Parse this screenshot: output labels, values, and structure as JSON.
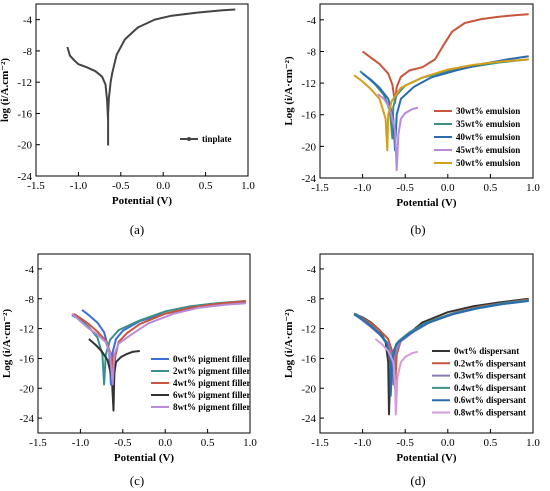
{
  "figure": {
    "panels": [
      {
        "caption": "(a)"
      },
      {
        "caption": "(b)"
      },
      {
        "caption": "(c)"
      },
      {
        "caption": "(d)"
      }
    ]
  },
  "chart_data": [
    {
      "type": "line",
      "panel": "(a)",
      "xlabel": "Potential (V)",
      "ylabel": "log (i/A.cm⁻²)",
      "xlim": [
        -1.5,
        1.0
      ],
      "ylim": [
        -24,
        -2
      ],
      "xticks": [
        "-1.5",
        "-1.0",
        "-0.5",
        "0.0",
        "0.5",
        "1.0"
      ],
      "yticks": [
        "-4",
        "-8",
        "-12",
        "-16",
        "-20",
        "-24"
      ],
      "legend_position": "lower-right",
      "series": [
        {
          "name": "tinplate",
          "color": "#444444",
          "marker": true,
          "x": [
            -1.13,
            -1.1,
            -1.05,
            -1.0,
            -0.9,
            -0.8,
            -0.72,
            -0.68,
            -0.66,
            -0.65,
            -0.65,
            -0.65,
            -0.64,
            -0.63,
            -0.62,
            -0.6,
            -0.55,
            -0.45,
            -0.3,
            -0.1,
            0.1,
            0.4,
            0.7,
            0.85
          ],
          "y": [
            -7.5,
            -8.6,
            -9.2,
            -9.7,
            -10.1,
            -10.6,
            -11.3,
            -12.3,
            -14.5,
            -17.0,
            -20.0,
            -16.0,
            -14.0,
            -13.0,
            -12.0,
            -10.8,
            -8.5,
            -6.5,
            -5.0,
            -4.0,
            -3.5,
            -3.1,
            -2.8,
            -2.7
          ]
        }
      ]
    },
    {
      "type": "line",
      "panel": "(b)",
      "xlabel": "Potential (V)",
      "ylabel": "Log (i/A·cm⁻²)",
      "xlim": [
        -1.5,
        1.0
      ],
      "ylim": [
        -24,
        -2
      ],
      "xticks": [
        "-1.5",
        "-1.0",
        "-0.5",
        "0.0",
        "0.5",
        "1.0"
      ],
      "yticks": [
        "-4",
        "-8",
        "-12",
        "-16",
        "-20",
        "-24"
      ],
      "legend_position": "lower-right",
      "series": [
        {
          "name": "30wt% emulsion",
          "color": "#c8553d",
          "x": [
            -1.0,
            -0.9,
            -0.8,
            -0.7,
            -0.65,
            -0.62,
            -0.6,
            -0.55,
            -0.45,
            -0.3,
            -0.15,
            -0.05,
            0.05,
            0.2,
            0.4,
            0.6,
            0.8,
            0.95
          ],
          "y": [
            -8.0,
            -8.8,
            -9.6,
            -10.8,
            -12.2,
            -14.5,
            -12.5,
            -11.2,
            -10.4,
            -10.0,
            -9.0,
            -7.2,
            -5.5,
            -4.4,
            -3.9,
            -3.6,
            -3.4,
            -3.3
          ]
        },
        {
          "name": "35wt% emulsion",
          "color": "#3b8f8a",
          "x": [
            -1.03,
            -0.95,
            -0.85,
            -0.75,
            -0.68,
            -0.65,
            -0.64,
            -0.6,
            -0.5,
            -0.3,
            0.0,
            0.3,
            0.6,
            0.95
          ],
          "y": [
            -10.5,
            -11.2,
            -12.2,
            -13.5,
            -15.5,
            -19.0,
            -15.0,
            -13.5,
            -12.3,
            -11.3,
            -10.5,
            -9.9,
            -9.4,
            -9.0
          ]
        },
        {
          "name": "40wt% emulsion",
          "color": "#2b6cb0",
          "x": [
            -1.0,
            -0.9,
            -0.8,
            -0.7,
            -0.64,
            -0.62,
            -0.6,
            -0.55,
            -0.4,
            -0.2,
            0.1,
            0.4,
            0.7,
            0.95
          ],
          "y": [
            -10.8,
            -11.6,
            -12.6,
            -14.0,
            -16.5,
            -20.5,
            -16.0,
            -14.0,
            -12.5,
            -11.3,
            -10.4,
            -9.6,
            -9.0,
            -8.6
          ]
        },
        {
          "name": "45wt% emulsion",
          "color": "#b98ad9",
          "x": [
            -0.82,
            -0.75,
            -0.68,
            -0.62,
            -0.6,
            -0.58,
            -0.55,
            -0.5,
            -0.42,
            -0.35
          ],
          "y": [
            -13.4,
            -14.0,
            -15.2,
            -18.0,
            -23.0,
            -18.5,
            -16.5,
            -15.8,
            -15.3,
            -15.1
          ]
        },
        {
          "name": "50wt% emulsion",
          "color": "#d4a017",
          "x": [
            -1.1,
            -1.0,
            -0.9,
            -0.8,
            -0.73,
            -0.71,
            -0.7,
            -0.66,
            -0.55,
            -0.3,
            0.0,
            0.3,
            0.6,
            0.95
          ],
          "y": [
            -11.0,
            -11.8,
            -12.8,
            -14.0,
            -16.5,
            -20.5,
            -16.0,
            -14.3,
            -12.6,
            -11.3,
            -10.3,
            -9.7,
            -9.3,
            -9.0
          ]
        }
      ]
    },
    {
      "type": "line",
      "panel": "(c)",
      "xlabel": "Potential (V)",
      "ylabel": "Log (i/A·cm⁻²)",
      "xlim": [
        -1.5,
        1.0
      ],
      "ylim": [
        -26,
        -2
      ],
      "xticks": [
        "-1.5",
        "-1.0",
        "-0.5",
        "0.0",
        "0.5",
        "1.0"
      ],
      "yticks": [
        "-4",
        "-8",
        "-12",
        "-16",
        "-20",
        "-24"
      ],
      "legend_position": "lower-right",
      "series": [
        {
          "name": "0wt% pigment filler",
          "color": "#3b6fd6",
          "x": [
            -0.98,
            -0.9,
            -0.8,
            -0.72,
            -0.66,
            -0.64,
            -0.62,
            -0.58,
            -0.5,
            -0.3,
            0.0,
            0.3,
            0.6,
            0.95
          ],
          "y": [
            -9.5,
            -10.2,
            -11.2,
            -12.5,
            -15.0,
            -19.5,
            -15.2,
            -13.4,
            -12.3,
            -11.0,
            -10.0,
            -9.3,
            -8.8,
            -8.5
          ]
        },
        {
          "name": "2wt% pigment filler",
          "color": "#3b8f8a",
          "x": [
            -1.1,
            -1.0,
            -0.9,
            -0.8,
            -0.74,
            -0.72,
            -0.7,
            -0.65,
            -0.55,
            -0.3,
            0.0,
            0.3,
            0.6,
            0.95
          ],
          "y": [
            -10.2,
            -10.8,
            -11.8,
            -13.2,
            -15.5,
            -19.5,
            -15.5,
            -13.5,
            -12.2,
            -10.9,
            -9.7,
            -9.0,
            -8.6,
            -8.3
          ]
        },
        {
          "name": "4wt% pigment filler",
          "color": "#c8553d",
          "x": [
            -1.08,
            -1.0,
            -0.9,
            -0.8,
            -0.7,
            -0.63,
            -0.61,
            -0.59,
            -0.55,
            -0.45,
            -0.3,
            0.0,
            0.3,
            0.6,
            0.95
          ],
          "y": [
            -10.0,
            -10.6,
            -11.4,
            -12.4,
            -13.6,
            -15.8,
            -20.5,
            -15.8,
            -13.8,
            -12.6,
            -11.4,
            -10.0,
            -9.2,
            -8.7,
            -8.3
          ]
        },
        {
          "name": "6wt% pigment filler",
          "color": "#333333",
          "x": [
            -0.9,
            -0.82,
            -0.75,
            -0.68,
            -0.63,
            -0.61,
            -0.6,
            -0.58,
            -0.52,
            -0.45,
            -0.38,
            -0.3
          ],
          "y": [
            -13.4,
            -14.2,
            -15.0,
            -16.2,
            -18.5,
            -23.0,
            -18.0,
            -16.5,
            -15.8,
            -15.4,
            -15.1,
            -15.0
          ]
        },
        {
          "name": "8wt% pigment filler",
          "color": "#b98ad9",
          "x": [
            -1.1,
            -1.0,
            -0.9,
            -0.8,
            -0.7,
            -0.65,
            -0.62,
            -0.6,
            -0.55,
            -0.4,
            -0.2,
            0.1,
            0.4,
            0.7,
            0.95
          ],
          "y": [
            -10.0,
            -11.0,
            -12.0,
            -12.8,
            -13.8,
            -15.5,
            -19.5,
            -15.5,
            -14.0,
            -12.8,
            -11.3,
            -10.0,
            -9.2,
            -8.8,
            -8.6
          ]
        }
      ]
    },
    {
      "type": "line",
      "panel": "(d)",
      "xlabel": "Potential (V)",
      "ylabel": "Log (i/A·cm⁻²)",
      "xlim": [
        -1.5,
        1.0
      ],
      "ylim": [
        -26,
        -2
      ],
      "xticks": [
        "-1.5",
        "-1.0",
        "-0.5",
        "0.0",
        "0.5",
        "1.0"
      ],
      "yticks": [
        "-4",
        "-8",
        "-12",
        "-16",
        "-20",
        "-24"
      ],
      "legend_position": "lower-right",
      "series": [
        {
          "name": "0wt% dispersant",
          "color": "#333333",
          "x": [
            -1.1,
            -1.0,
            -0.9,
            -0.8,
            -0.73,
            -0.7,
            -0.69,
            -0.67,
            -0.6,
            -0.45,
            -0.3,
            0.0,
            0.3,
            0.6,
            0.95
          ],
          "y": [
            -10.0,
            -10.5,
            -11.2,
            -12.2,
            -13.8,
            -16.5,
            -23.5,
            -16.0,
            -14.0,
            -12.6,
            -11.2,
            -9.8,
            -9.0,
            -8.5,
            -8.0
          ]
        },
        {
          "name": "0.2wt% dispersant",
          "color": "#c8553d",
          "x": [
            -1.1,
            -1.0,
            -0.9,
            -0.8,
            -0.7,
            -0.64,
            -0.62,
            -0.6,
            -0.55,
            -0.4,
            -0.2,
            0.1,
            0.4,
            0.7,
            0.95
          ],
          "y": [
            -10.0,
            -10.6,
            -11.3,
            -12.2,
            -13.4,
            -15.5,
            -20.0,
            -15.5,
            -13.6,
            -12.3,
            -11.0,
            -9.8,
            -9.0,
            -8.5,
            -8.1
          ]
        },
        {
          "name": "0.3wt% dispersant",
          "color": "#8a7ab8",
          "x": [
            -1.08,
            -1.0,
            -0.9,
            -0.8,
            -0.7,
            -0.66,
            -0.64,
            -0.62,
            -0.56,
            -0.4,
            -0.2,
            0.1,
            0.4,
            0.7,
            0.95
          ],
          "y": [
            -10.2,
            -10.9,
            -11.8,
            -12.8,
            -14.0,
            -15.8,
            -19.5,
            -15.6,
            -13.8,
            -12.4,
            -11.1,
            -9.9,
            -9.1,
            -8.6,
            -8.2
          ]
        },
        {
          "name": "0.4wt% dispersant",
          "color": "#3b8f8a",
          "x": [
            -1.08,
            -1.0,
            -0.9,
            -0.8,
            -0.72,
            -0.68,
            -0.66,
            -0.64,
            -0.58,
            -0.45,
            -0.25,
            0.05,
            0.35,
            0.65,
            0.95
          ],
          "y": [
            -10.0,
            -10.7,
            -11.6,
            -12.6,
            -13.8,
            -15.6,
            -18.5,
            -15.2,
            -13.7,
            -12.5,
            -11.2,
            -10.0,
            -9.2,
            -8.6,
            -8.2
          ]
        },
        {
          "name": "0.6wt% dispersant",
          "color": "#2b6cb0",
          "x": [
            -1.1,
            -1.0,
            -0.9,
            -0.8,
            -0.72,
            -0.68,
            -0.67,
            -0.65,
            -0.6,
            -0.45,
            -0.25,
            0.05,
            0.35,
            0.65,
            0.95
          ],
          "y": [
            -10.1,
            -10.8,
            -11.7,
            -12.7,
            -14.0,
            -16.0,
            -21.0,
            -16.0,
            -14.0,
            -12.7,
            -11.3,
            -10.1,
            -9.3,
            -8.7,
            -8.3
          ]
        },
        {
          "name": "0.8wt% dispersant",
          "color": "#d49ad9",
          "x": [
            -0.85,
            -0.78,
            -0.7,
            -0.64,
            -0.62,
            -0.61,
            -0.59,
            -0.55,
            -0.5,
            -0.42,
            -0.35
          ],
          "y": [
            -13.4,
            -14.0,
            -15.0,
            -16.5,
            -19.0,
            -23.5,
            -18.5,
            -16.5,
            -15.8,
            -15.3,
            -15.1
          ]
        }
      ]
    }
  ]
}
